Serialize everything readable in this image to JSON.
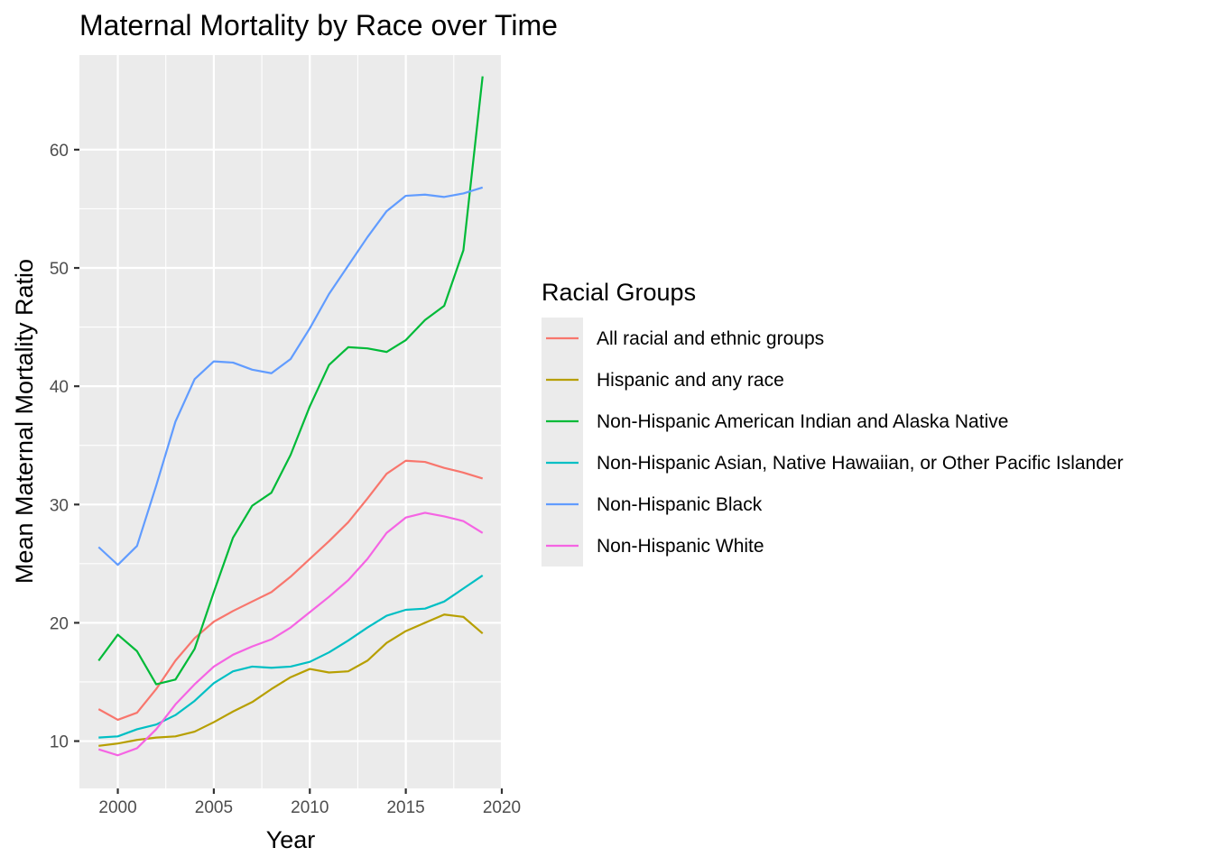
{
  "chart_data": {
    "type": "line",
    "title": "Maternal Mortality by Race over Time",
    "xlabel": "Year",
    "ylabel": "Mean Maternal Mortality Ratio",
    "xlim": [
      1998,
      2020
    ],
    "ylim": [
      6,
      68
    ],
    "x_ticks": [
      2000,
      2005,
      2010,
      2015,
      2020
    ],
    "y_ticks": [
      10,
      20,
      30,
      40,
      50,
      60
    ],
    "grid": true,
    "legend": {
      "title": "Racial Groups",
      "position": "right"
    },
    "x": [
      1999,
      2000,
      2001,
      2002,
      2003,
      2004,
      2005,
      2006,
      2007,
      2008,
      2009,
      2010,
      2011,
      2012,
      2013,
      2014,
      2015,
      2016,
      2017,
      2018,
      2019
    ],
    "series": [
      {
        "name": "All racial and ethnic groups",
        "color": "#F8766D",
        "values": [
          12.7,
          11.8,
          12.4,
          14.4,
          16.8,
          18.7,
          20.1,
          21.0,
          21.8,
          22.6,
          23.9,
          25.4,
          26.9,
          28.5,
          30.5,
          32.6,
          33.7,
          33.6,
          33.1,
          32.7,
          32.2
        ]
      },
      {
        "name": "Hispanic and any race",
        "color": "#B79F00",
        "values": [
          9.6,
          9.8,
          10.1,
          10.3,
          10.4,
          10.8,
          11.6,
          12.5,
          13.3,
          14.4,
          15.4,
          16.1,
          15.8,
          15.9,
          16.8,
          18.3,
          19.3,
          20.0,
          20.7,
          20.5,
          19.1
        ]
      },
      {
        "name": "Non-Hispanic American Indian and Alaska Native",
        "color": "#00BA38",
        "values": [
          16.8,
          19.0,
          17.6,
          14.8,
          15.2,
          17.8,
          22.6,
          27.2,
          29.9,
          31.0,
          34.2,
          38.3,
          41.8,
          43.3,
          43.2,
          42.9,
          43.9,
          45.6,
          46.8,
          51.5,
          66.2
        ]
      },
      {
        "name": "Non-Hispanic Asian, Native Hawaiian, or Other Pacific Islander",
        "color": "#00BFC4",
        "values": [
          10.3,
          10.4,
          11.0,
          11.4,
          12.2,
          13.4,
          14.9,
          15.9,
          16.3,
          16.2,
          16.3,
          16.7,
          17.5,
          18.5,
          19.6,
          20.6,
          21.1,
          21.2,
          21.8,
          22.9,
          24.0
        ]
      },
      {
        "name": "Non-Hispanic Black",
        "color": "#619CFF",
        "values": [
          26.4,
          24.9,
          26.5,
          31.6,
          37.0,
          40.6,
          42.1,
          42.0,
          41.4,
          41.1,
          42.3,
          44.9,
          47.8,
          50.2,
          52.6,
          54.8,
          56.1,
          56.2,
          56.0,
          56.3,
          56.8
        ]
      },
      {
        "name": "Non-Hispanic White",
        "color": "#F564E3",
        "values": [
          9.3,
          8.8,
          9.4,
          11.0,
          13.1,
          14.8,
          16.3,
          17.3,
          18.0,
          18.6,
          19.6,
          20.9,
          22.2,
          23.6,
          25.4,
          27.6,
          28.9,
          29.3,
          29.0,
          28.6,
          27.6
        ]
      }
    ]
  }
}
